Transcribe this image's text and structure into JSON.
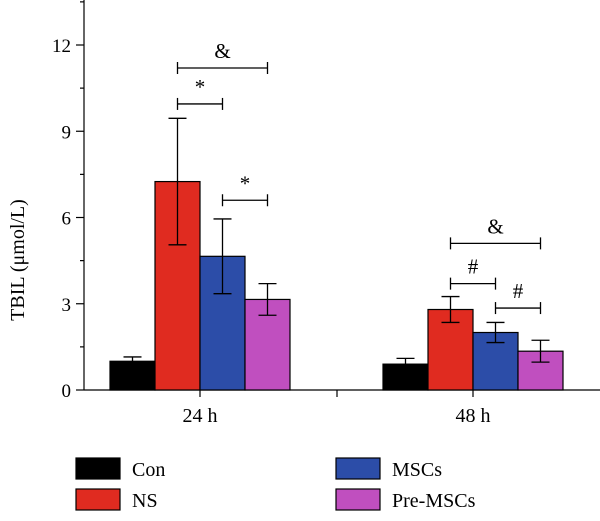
{
  "chart_data": {
    "type": "bar",
    "ylabel": "TBIL (μmol/L)",
    "ylim": [
      0,
      12
    ],
    "yticks": [
      0,
      3,
      6,
      9,
      12
    ],
    "categories": [
      "24 h",
      "48 h"
    ],
    "series": [
      {
        "name": "Con",
        "color": "#000000",
        "values": [
          1.0,
          0.9
        ],
        "errors": [
          0.15,
          0.2
        ]
      },
      {
        "name": "NS",
        "color": "#e02b20",
        "values": [
          7.25,
          2.8
        ],
        "errors": [
          2.2,
          0.45
        ]
      },
      {
        "name": "MSCs",
        "color": "#2c4da8",
        "values": [
          4.65,
          2.0
        ],
        "errors": [
          1.3,
          0.35
        ]
      },
      {
        "name": "Pre-MSCs",
        "color": "#c04fbf",
        "values": [
          3.15,
          1.35
        ],
        "errors": [
          0.55,
          0.38
        ]
      }
    ],
    "significance": [
      {
        "category": 0,
        "from": 1,
        "to": 3,
        "label": "&",
        "y": 11.2
      },
      {
        "category": 0,
        "from": 1,
        "to": 2,
        "label": "*",
        "y": 9.95
      },
      {
        "category": 0,
        "from": 2,
        "to": 3,
        "label": "*",
        "y": 6.6
      },
      {
        "category": 1,
        "from": 1,
        "to": 3,
        "label": "&",
        "y": 5.1
      },
      {
        "category": 1,
        "from": 1,
        "to": 2,
        "label": "#",
        "y": 3.7
      },
      {
        "category": 1,
        "from": 2,
        "to": 3,
        "label": "#",
        "y": 2.85
      }
    ],
    "legend": {
      "placement": "bottom",
      "columns": 2
    }
  }
}
